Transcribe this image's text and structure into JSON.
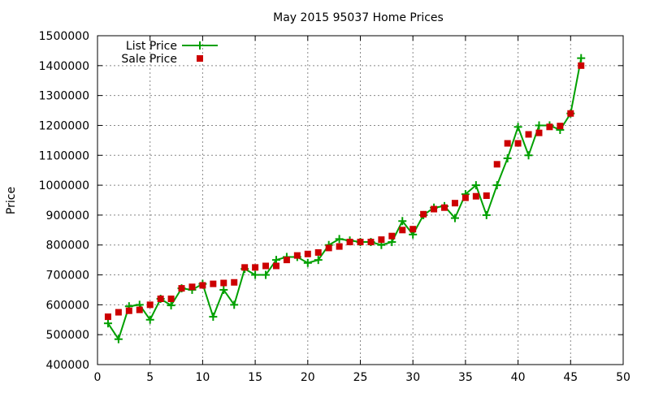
{
  "chart_data": {
    "type": "line",
    "title": "May 2015 95037 Home Prices",
    "xlabel": "",
    "ylabel": "Price",
    "xlim": [
      0,
      50
    ],
    "ylim": [
      400000,
      1500000
    ],
    "xticks": [
      0,
      5,
      10,
      15,
      20,
      25,
      30,
      35,
      40,
      45,
      50
    ],
    "yticks": [
      400000,
      500000,
      600000,
      700000,
      800000,
      900000,
      1000000,
      1100000,
      1200000,
      1300000,
      1400000,
      1500000
    ],
    "grid": true,
    "legend_position": "top-left",
    "series": [
      {
        "name": "List Price",
        "style": "line-plus",
        "color": "#00a000",
        "x": [
          1,
          2,
          3,
          4,
          5,
          6,
          7,
          8,
          9,
          10,
          11,
          12,
          13,
          14,
          15,
          16,
          17,
          18,
          19,
          20,
          21,
          22,
          23,
          24,
          25,
          26,
          27,
          28,
          29,
          30,
          31,
          32,
          33,
          34,
          35,
          36,
          37,
          38,
          39,
          40,
          41,
          42,
          43,
          44,
          45,
          46
        ],
        "y": [
          538000,
          485000,
          595000,
          600000,
          550000,
          620000,
          598000,
          655000,
          650000,
          670000,
          560000,
          650000,
          600000,
          720000,
          700000,
          700000,
          750000,
          760000,
          760000,
          740000,
          750000,
          800000,
          820000,
          815000,
          810000,
          810000,
          800000,
          810000,
          880000,
          835000,
          900000,
          925000,
          930000,
          890000,
          970000,
          1000000,
          900000,
          1000000,
          1090000,
          1195000,
          1100000,
          1200000,
          1200000,
          1185000,
          1240000,
          1425000
        ]
      },
      {
        "name": "Sale Price",
        "style": "square",
        "color": "#cc0000",
        "x": [
          1,
          2,
          3,
          4,
          5,
          6,
          7,
          8,
          9,
          10,
          11,
          12,
          13,
          14,
          15,
          16,
          17,
          18,
          19,
          20,
          21,
          22,
          23,
          24,
          25,
          26,
          27,
          28,
          29,
          30,
          31,
          32,
          33,
          34,
          35,
          36,
          37,
          38,
          39,
          40,
          41,
          42,
          43,
          44,
          45,
          46
        ],
        "y": [
          560000,
          575000,
          580000,
          583000,
          600000,
          620000,
          620000,
          655000,
          660000,
          665000,
          670000,
          673000,
          675000,
          725000,
          725000,
          730000,
          730000,
          750000,
          765000,
          770000,
          775000,
          790000,
          795000,
          810000,
          810000,
          810000,
          818000,
          830000,
          850000,
          853000,
          903000,
          920000,
          925000,
          940000,
          958000,
          963000,
          965000,
          1070000,
          1140000,
          1140000,
          1170000,
          1175000,
          1195000,
          1198000,
          1240000,
          1400000
        ]
      }
    ]
  }
}
